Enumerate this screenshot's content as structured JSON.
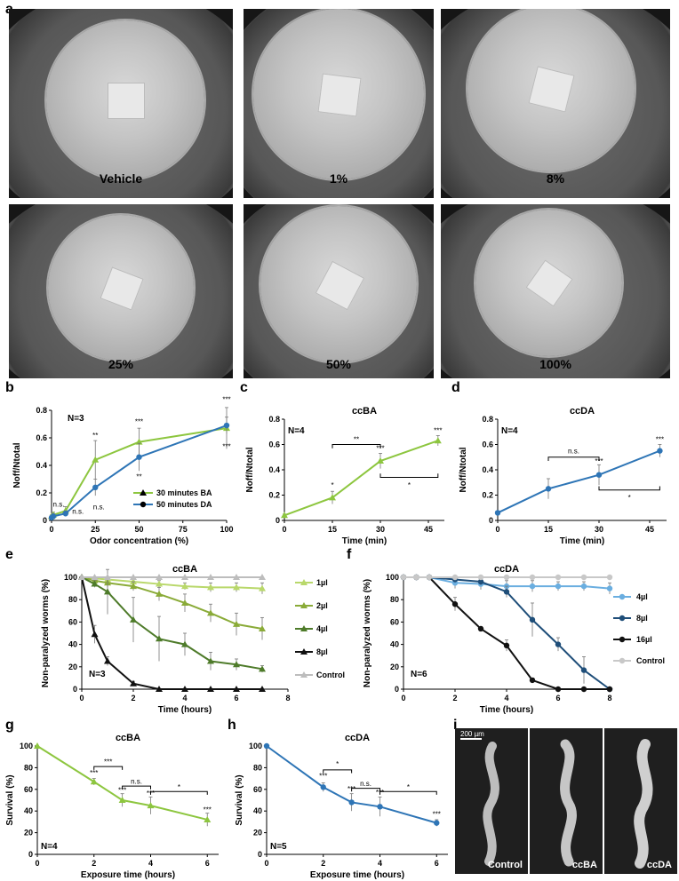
{
  "panel_letters": [
    "a",
    "b",
    "c",
    "d",
    "e",
    "f",
    "g",
    "h",
    "i"
  ],
  "plates": [
    {
      "label": "Vehicle"
    },
    {
      "label": "1%"
    },
    {
      "label": "8%"
    },
    {
      "label": "25%"
    },
    {
      "label": "50%"
    },
    {
      "label": "100%"
    }
  ],
  "micro": {
    "scale_bar": "200 µm",
    "labels": [
      "Control",
      "ccBA",
      "ccDA"
    ]
  },
  "chart_data": [
    {
      "id": "b",
      "type": "line",
      "n_label": "N=3",
      "title": "",
      "xlabel": "Odor concentration (%)",
      "ylabel": "Noff/Ntotal",
      "xlim": [
        0,
        100
      ],
      "ylim": [
        0,
        0.8
      ],
      "xticks": [
        0,
        25,
        50,
        75,
        100
      ],
      "yticks": [
        0,
        0.2,
        0.4,
        0.6,
        0.8
      ],
      "series": [
        {
          "name": "30 minutes BA",
          "color": "#8dc63f",
          "marker": "triangle",
          "x": [
            0,
            1,
            8,
            25,
            50,
            100
          ],
          "y": [
            0.03,
            0.04,
            0.07,
            0.44,
            0.57,
            0.67
          ],
          "err": [
            0.01,
            0.02,
            0.03,
            0.14,
            0.1,
            0.15
          ]
        },
        {
          "name": "50 minutes DA",
          "color": "#2e75b6",
          "marker": "circle",
          "x": [
            0,
            1,
            8,
            25,
            50,
            100
          ],
          "y": [
            0.02,
            0.03,
            0.05,
            0.24,
            0.46,
            0.69
          ],
          "err": [
            0.01,
            0.02,
            0.02,
            0.06,
            0.1,
            0.06
          ]
        }
      ],
      "annotations": [
        "n.s.",
        "n.s.",
        "n.s.",
        "**",
        "***",
        "**",
        "***",
        "***"
      ]
    },
    {
      "id": "c",
      "type": "line",
      "n_label": "N=4",
      "title": "ccBA",
      "xlabel": "Time (min)",
      "ylabel": "Noff/Ntotal",
      "xlim": [
        0,
        50
      ],
      "ylim": [
        0,
        0.8
      ],
      "xticks": [
        0,
        15,
        30,
        45
      ],
      "yticks": [
        0,
        0.2,
        0.4,
        0.6,
        0.8
      ],
      "series": [
        {
          "name": "",
          "color": "#8dc63f",
          "marker": "triangle",
          "x": [
            0,
            15,
            30,
            48
          ],
          "y": [
            0.04,
            0.18,
            0.47,
            0.63
          ],
          "err": [
            0.01,
            0.05,
            0.06,
            0.04
          ]
        }
      ],
      "annotations": [
        "*",
        "***",
        "***",
        "**",
        "*"
      ]
    },
    {
      "id": "d",
      "type": "line",
      "n_label": "N=4",
      "title": "ccDA",
      "xlabel": "Time (min)",
      "ylabel": "Noff/Ntotal",
      "xlim": [
        0,
        50
      ],
      "ylim": [
        0,
        0.8
      ],
      "xticks": [
        0,
        15,
        30,
        45
      ],
      "yticks": [
        0,
        0.2,
        0.4,
        0.6,
        0.8
      ],
      "series": [
        {
          "name": "",
          "color": "#2e75b6",
          "marker": "circle",
          "x": [
            0,
            15,
            30,
            48
          ],
          "y": [
            0.06,
            0.25,
            0.36,
            0.55
          ],
          "err": [
            0.01,
            0.08,
            0.08,
            0.05
          ]
        }
      ],
      "annotations": [
        "n.s.",
        "***",
        "***",
        "*"
      ]
    },
    {
      "id": "e",
      "type": "line",
      "n_label": "N=3",
      "title": "ccBA",
      "xlabel": "Time (hours)",
      "ylabel": "Non-paralyzed worms (%)",
      "xlim": [
        0,
        8
      ],
      "ylim": [
        0,
        100
      ],
      "xticks": [
        0,
        2,
        4,
        6,
        8
      ],
      "yticks": [
        0,
        20,
        40,
        60,
        80,
        100
      ],
      "series": [
        {
          "name": "1µl",
          "color": "#b9d86b",
          "marker": "triangle",
          "x": [
            0,
            0.5,
            1,
            2,
            3,
            4,
            5,
            6,
            7
          ],
          "y": [
            100,
            99,
            98,
            96,
            94,
            92,
            91,
            91,
            90
          ],
          "err": [
            0,
            1,
            2,
            3,
            3,
            3,
            4,
            4,
            5
          ]
        },
        {
          "name": "2µl",
          "color": "#8aab38",
          "marker": "triangle",
          "x": [
            0,
            0.5,
            1,
            2,
            3,
            4,
            5,
            6,
            7
          ],
          "y": [
            100,
            97,
            95,
            92,
            85,
            77,
            68,
            58,
            54
          ],
          "err": [
            0,
            2,
            4,
            4,
            6,
            8,
            8,
            10,
            10
          ]
        },
        {
          "name": "4µl",
          "color": "#4e7b2a",
          "marker": "triangle",
          "x": [
            0,
            0.5,
            1,
            2,
            3,
            4,
            5,
            6,
            7
          ],
          "y": [
            100,
            94,
            87,
            62,
            45,
            40,
            25,
            22,
            18
          ],
          "err": [
            0,
            3,
            20,
            20,
            20,
            10,
            8,
            5,
            3
          ]
        },
        {
          "name": "8µl",
          "color": "#111111",
          "marker": "triangle",
          "x": [
            0,
            0.5,
            1,
            2,
            3,
            4,
            5,
            6,
            7
          ],
          "y": [
            100,
            49,
            25,
            5,
            0,
            0,
            0,
            0,
            0
          ],
          "err": [
            0,
            8,
            4,
            2,
            0,
            0,
            0,
            0,
            0
          ]
        },
        {
          "name": "Control",
          "color": "#bdbdbd",
          "marker": "triangle",
          "x": [
            0,
            0.5,
            1,
            2,
            3,
            4,
            5,
            6,
            7
          ],
          "y": [
            100,
            100,
            100,
            100,
            100,
            100,
            100,
            100,
            100
          ],
          "err": [
            0,
            0,
            0,
            0,
            0,
            0,
            0,
            0,
            0
          ]
        }
      ]
    },
    {
      "id": "f",
      "type": "line",
      "n_label": "N=6",
      "title": "ccDA",
      "xlabel": "Time (hours)",
      "ylabel": "Non-paralyzed worms (%)",
      "xlim": [
        0,
        8
      ],
      "ylim": [
        0,
        100
      ],
      "xticks": [
        0,
        2,
        4,
        6,
        8
      ],
      "yticks": [
        0,
        20,
        40,
        60,
        80,
        100
      ],
      "series": [
        {
          "name": "4µl",
          "color": "#6aaee0",
          "marker": "circle",
          "x": [
            0,
            0.5,
            1,
            2,
            3,
            4,
            5,
            6,
            7,
            8
          ],
          "y": [
            100,
            100,
            100,
            95,
            94,
            92,
            92,
            92,
            92,
            90
          ],
          "err": [
            0,
            0,
            0,
            5,
            5,
            5,
            5,
            4,
            4,
            5
          ]
        },
        {
          "name": "8µl",
          "color": "#1f4e79",
          "marker": "circle",
          "x": [
            0,
            0.5,
            1,
            2,
            3,
            4,
            5,
            6,
            7,
            8
          ],
          "y": [
            100,
            100,
            100,
            98,
            96,
            87,
            62,
            40,
            17,
            0
          ],
          "err": [
            0,
            0,
            0,
            2,
            3,
            5,
            15,
            6,
            12,
            0
          ]
        },
        {
          "name": "16µl",
          "color": "#111111",
          "marker": "circle",
          "x": [
            0,
            0.5,
            1,
            2,
            3,
            4,
            5,
            6,
            7,
            8
          ],
          "y": [
            100,
            100,
            100,
            76,
            54,
            39,
            8,
            0,
            0,
            0
          ],
          "err": [
            0,
            0,
            0,
            6,
            2,
            5,
            2,
            0,
            0,
            0
          ]
        },
        {
          "name": "Control",
          "color": "#c8c8c8",
          "marker": "circle",
          "x": [
            0,
            0.5,
            1,
            2,
            3,
            4,
            5,
            6,
            7,
            8
          ],
          "y": [
            100,
            100,
            100,
            100,
            100,
            100,
            100,
            100,
            100,
            100
          ],
          "err": [
            0,
            0,
            0,
            0,
            0,
            0,
            0,
            0,
            0,
            0
          ]
        }
      ]
    },
    {
      "id": "g",
      "type": "line",
      "n_label": "N=4",
      "title": "ccBA",
      "xlabel": "Exposure time (hours)",
      "ylabel": "Survival (%)",
      "xlim": [
        0,
        6.4
      ],
      "ylim": [
        0,
        100
      ],
      "xticks": [
        0,
        2,
        4,
        6
      ],
      "yticks": [
        0,
        20,
        40,
        60,
        80,
        100
      ],
      "series": [
        {
          "name": "",
          "color": "#8dc63f",
          "marker": "triangle",
          "x": [
            0,
            2,
            3,
            4,
            6
          ],
          "y": [
            100,
            67,
            50,
            45,
            32
          ],
          "err": [
            0,
            3,
            6,
            8,
            6
          ]
        }
      ],
      "annotations": [
        "***",
        "n.s.",
        "*",
        "***",
        "***",
        "***",
        "***"
      ]
    },
    {
      "id": "h",
      "type": "line",
      "n_label": "N=5",
      "title": "ccDA",
      "xlabel": "Exposure time (hours)",
      "ylabel": "Survival (%)",
      "xlim": [
        0,
        6.4
      ],
      "ylim": [
        0,
        100
      ],
      "xticks": [
        0,
        2,
        4,
        6
      ],
      "yticks": [
        0,
        20,
        40,
        60,
        80,
        100
      ],
      "series": [
        {
          "name": "",
          "color": "#2e75b6",
          "marker": "circle",
          "x": [
            0,
            2,
            3,
            4,
            6
          ],
          "y": [
            100,
            62,
            48,
            44,
            29
          ],
          "err": [
            0,
            4,
            8,
            9,
            3
          ]
        }
      ],
      "annotations": [
        "*",
        "n.s.",
        "*",
        "***",
        "***",
        "***",
        "***"
      ]
    }
  ]
}
